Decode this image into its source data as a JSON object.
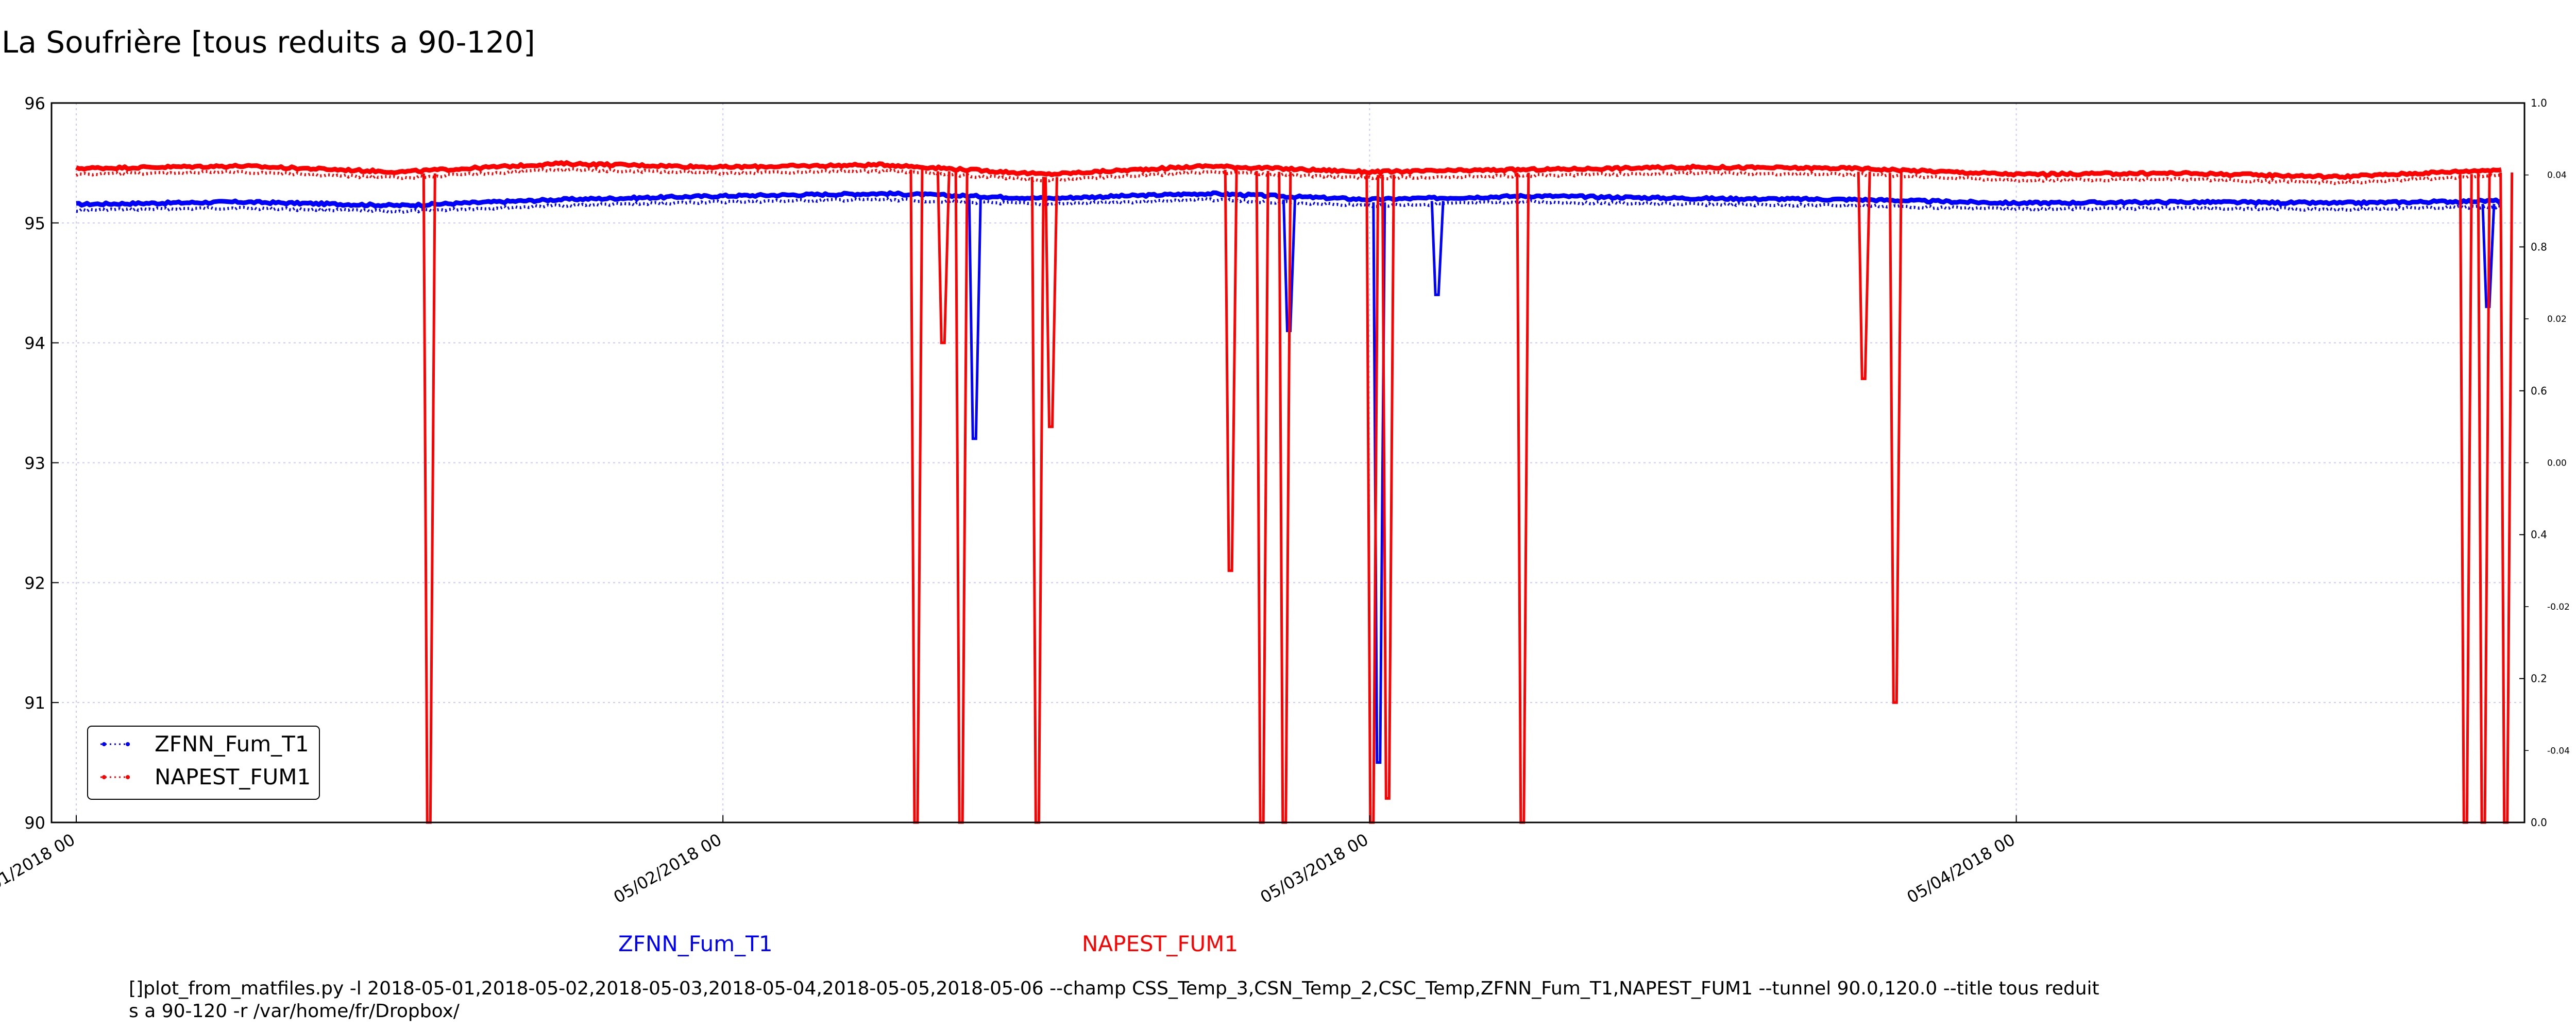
{
  "chart_data": {
    "type": "line",
    "title": "La Soufrière [tous reduits a 90-120]",
    "xlabel": "",
    "ylabel": "",
    "x_range": [
      "2018-05-01 00:00",
      "2018-05-04 18:00"
    ],
    "ylim": [
      90,
      96
    ],
    "y_ticks": [
      "90",
      "91",
      "92",
      "93",
      "94",
      "95",
      "96"
    ],
    "x_ticks": [
      {
        "label": "01/2018 00",
        "x": "2018-05-01 00:00"
      },
      {
        "label": "05/02/2018 00",
        "x": "2018-05-02 00:00"
      },
      {
        "label": "05/03/2018 00",
        "x": "2018-05-03 00:00"
      },
      {
        "label": "05/04/2018 00",
        "x": "2018-05-04 00:00"
      }
    ],
    "right_axis_outer": {
      "ylim": [
        0.0,
        1.0
      ],
      "ticks": [
        "0.0",
        "0.2",
        "0.4",
        "0.6",
        "0.8",
        "1.0"
      ]
    },
    "right_axis_inner": {
      "ylim": [
        -0.05,
        0.05
      ],
      "ticks": [
        "-0.04",
        "-0.02",
        "0.00",
        "0.02",
        "0.04"
      ]
    },
    "grid": true,
    "legend_position": "bottom-left",
    "series": [
      {
        "name": "ZFNN_Fum_T1",
        "color": "#0000ff",
        "x": [
          "2018-05-01 00:00",
          "2018-05-01 06:00",
          "2018-05-01 12:00",
          "2018-05-01 18:00",
          "2018-05-02 00:00",
          "2018-05-02 06:00",
          "2018-05-02 12:00",
          "2018-05-02 18:00",
          "2018-05-03 00:00",
          "2018-05-03 06:00",
          "2018-05-03 12:00",
          "2018-05-03 18:00",
          "2018-05-04 00:00",
          "2018-05-04 06:00",
          "2018-05-04 12:00",
          "2018-05-04 18:00"
        ],
        "values": [
          95.13,
          95.15,
          95.12,
          95.17,
          95.2,
          95.22,
          95.18,
          95.22,
          95.17,
          95.2,
          95.18,
          95.17,
          95.14,
          95.15,
          95.14,
          95.16
        ],
        "dips": [
          {
            "x": "2018-05-02 09:20",
            "min": 93.2
          },
          {
            "x": "2018-05-02 21:00",
            "min": 94.1
          },
          {
            "x": "2018-05-03 00:20",
            "min": 90.5
          },
          {
            "x": "2018-05-03 02:30",
            "min": 94.4
          },
          {
            "x": "2018-05-04 17:30",
            "min": 94.3
          }
        ]
      },
      {
        "name": "NAPEST_FUM1",
        "color": "#ff0000",
        "x": [
          "2018-05-01 00:00",
          "2018-05-01 06:00",
          "2018-05-01 12:00",
          "2018-05-01 18:00",
          "2018-05-02 00:00",
          "2018-05-02 06:00",
          "2018-05-02 12:00",
          "2018-05-02 18:00",
          "2018-05-03 00:00",
          "2018-05-03 06:00",
          "2018-05-03 12:00",
          "2018-05-03 18:00",
          "2018-05-04 00:00",
          "2018-05-04 06:00",
          "2018-05-04 12:00",
          "2018-05-04 18:00"
        ],
        "values": [
          95.43,
          95.45,
          95.4,
          95.47,
          95.44,
          95.46,
          95.38,
          95.45,
          95.4,
          95.42,
          95.44,
          95.43,
          95.38,
          95.39,
          95.36,
          95.42
        ],
        "dips": [
          {
            "x": "2018-05-01 13:05",
            "min": 90.0
          },
          {
            "x": "2018-05-02 07:10",
            "min": 90.0
          },
          {
            "x": "2018-05-02 08:10",
            "min": 94.0
          },
          {
            "x": "2018-05-02 08:50",
            "min": 90.0
          },
          {
            "x": "2018-05-02 11:40",
            "min": 90.0
          },
          {
            "x": "2018-05-02 12:10",
            "min": 93.3
          },
          {
            "x": "2018-05-02 18:50",
            "min": 92.1
          },
          {
            "x": "2018-05-02 20:00",
            "min": 90.0
          },
          {
            "x": "2018-05-02 20:50",
            "min": 90.0
          },
          {
            "x": "2018-05-03 00:05",
            "min": 90.0
          },
          {
            "x": "2018-05-03 00:40",
            "min": 90.2
          },
          {
            "x": "2018-05-03 05:40",
            "min": 90.0
          },
          {
            "x": "2018-05-03 18:20",
            "min": 93.7
          },
          {
            "x": "2018-05-03 19:30",
            "min": 91.0
          },
          {
            "x": "2018-05-04 16:40",
            "min": 90.0
          },
          {
            "x": "2018-05-04 17:20",
            "min": 90.0
          },
          {
            "x": "2018-05-04 18:10",
            "min": 90.0
          }
        ]
      }
    ]
  },
  "captions": {
    "series1": "ZFNN_Fum_T1",
    "series2": "NAPEST_FUM1"
  },
  "command_text": "[]plot_from_matfiles.py -l 2018-05-01,2018-05-02,2018-05-03,2018-05-04,2018-05-05,2018-05-06 --champ CSS_Temp_3,CSN_Temp_2,CSC_Temp,ZFNN_Fum_T1,NAPEST_FUM1 --tunnel 90.0,120.0 --title tous reduits a 90-120 -r /var/home/fr/Dropbox/",
  "colors": {
    "series1": "#0000ff",
    "series2": "#ff0000",
    "grid": "#c8c8ff"
  }
}
